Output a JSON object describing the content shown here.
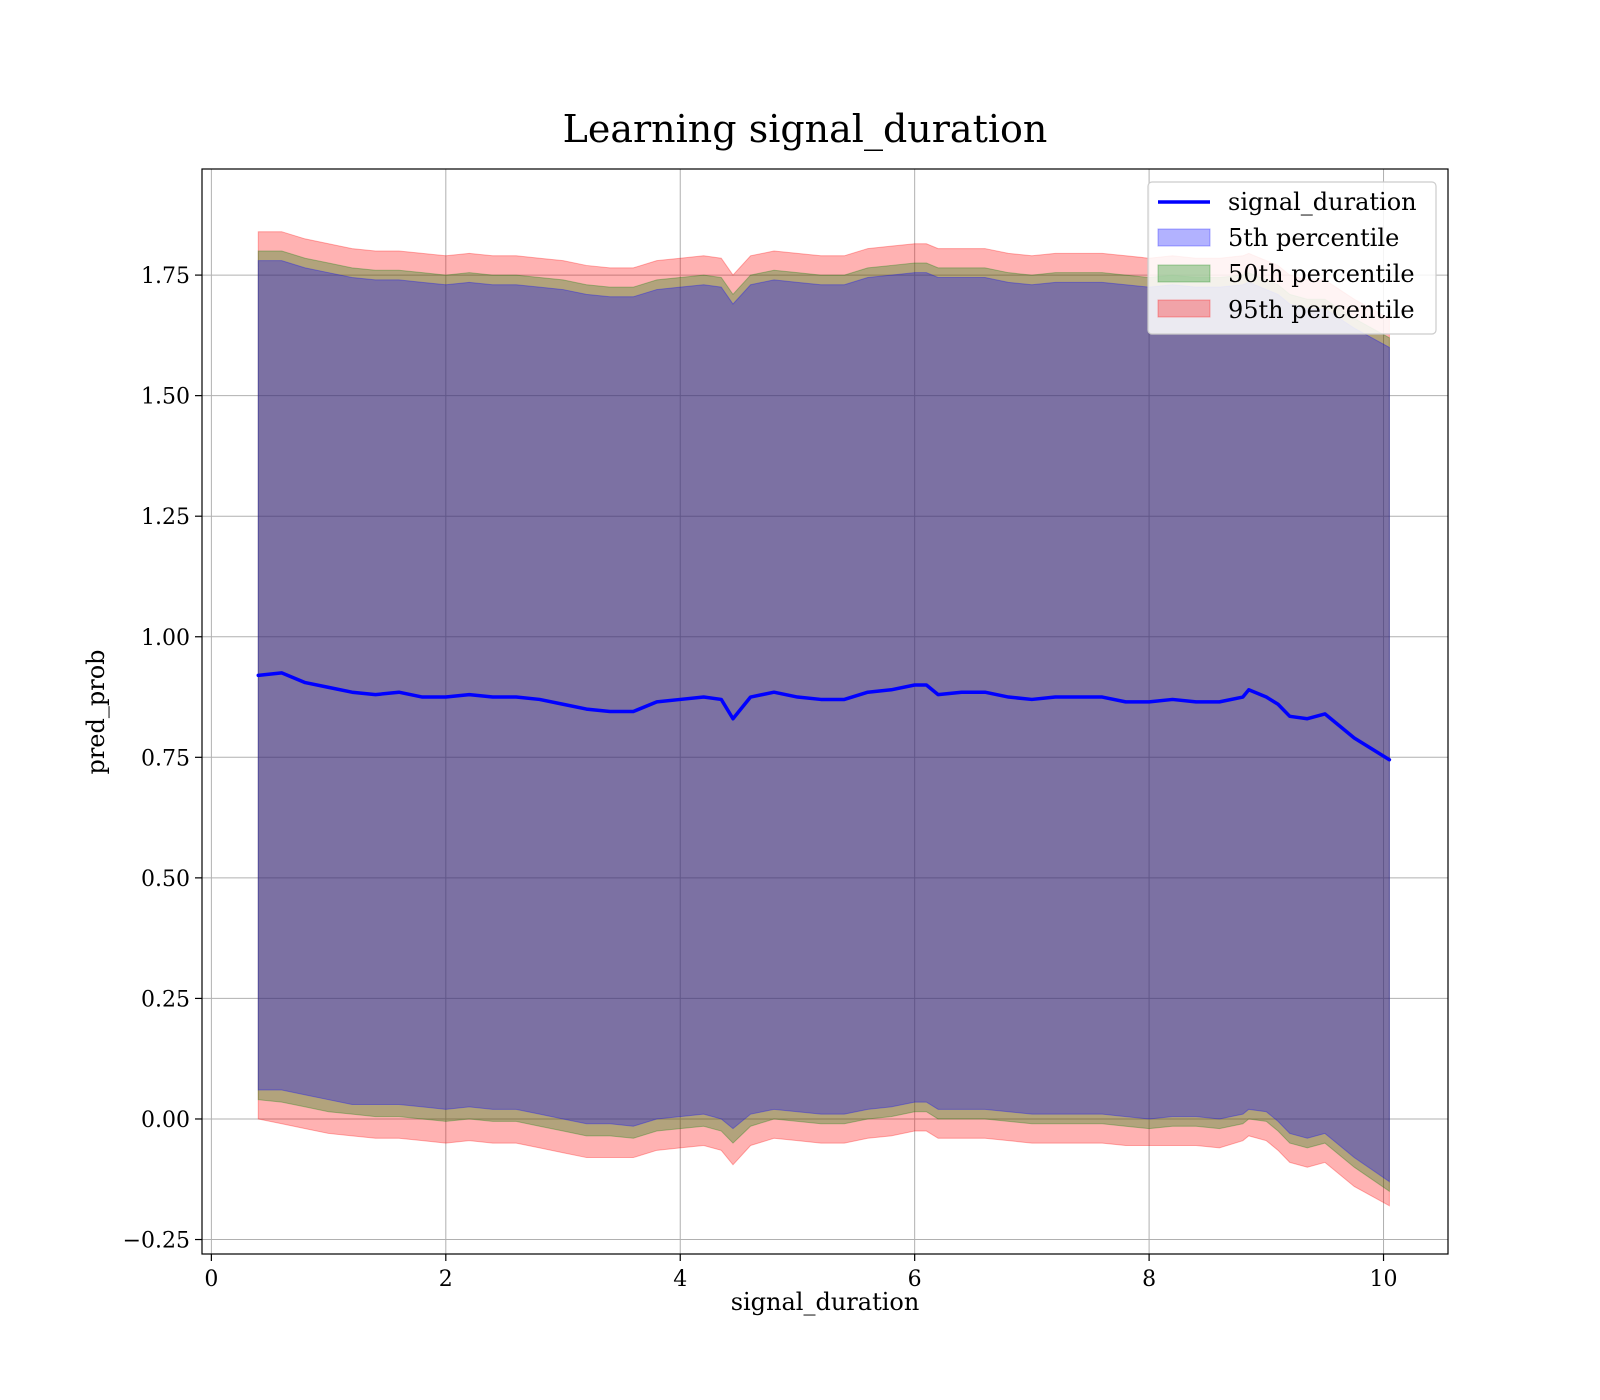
{
  "chart_data": {
    "type": "area",
    "title": "Learning signal_duration",
    "xlabel": "signal_duration",
    "ylabel": "pred_prob",
    "xlim": [
      -0.08,
      10.55
    ],
    "ylim": [
      -0.28,
      1.97
    ],
    "xticks": [
      0,
      2,
      4,
      6,
      8,
      10
    ],
    "yticks": [
      -0.25,
      0.0,
      0.25,
      0.5,
      0.75,
      1.0,
      1.25,
      1.5,
      1.75
    ],
    "ytick_labels": [
      "−0.25",
      "0.00",
      "0.25",
      "0.50",
      "0.75",
      "1.00",
      "1.25",
      "1.50",
      "1.75"
    ],
    "grid": true,
    "legend_position": "top-right",
    "legend": [
      {
        "label": "signal_duration",
        "kind": "line",
        "color": "#0000ff"
      },
      {
        "label": "5th percentile",
        "kind": "patch",
        "color": "#0000ff"
      },
      {
        "label": "50th percentile",
        "kind": "patch",
        "color": "#008000"
      },
      {
        "label": "95th percentile",
        "kind": "patch",
        "color": "#ff0000"
      }
    ],
    "x": [
      0.4,
      0.6,
      0.8,
      1.0,
      1.2,
      1.4,
      1.6,
      1.8,
      2.0,
      2.2,
      2.4,
      2.6,
      2.8,
      3.0,
      3.2,
      3.4,
      3.6,
      3.8,
      4.0,
      4.2,
      4.35,
      4.45,
      4.6,
      4.8,
      5.0,
      5.2,
      5.4,
      5.6,
      5.8,
      6.0,
      6.1,
      6.2,
      6.4,
      6.6,
      6.8,
      7.0,
      7.2,
      7.4,
      7.6,
      7.8,
      8.0,
      8.2,
      8.4,
      8.6,
      8.8,
      8.85,
      9.0,
      9.1,
      9.2,
      9.35,
      9.5,
      9.75,
      10.05
    ],
    "series": [
      {
        "name": "signal_duration",
        "values": [
          0.92,
          0.925,
          0.905,
          0.895,
          0.885,
          0.88,
          0.885,
          0.875,
          0.875,
          0.88,
          0.875,
          0.875,
          0.87,
          0.86,
          0.85,
          0.845,
          0.845,
          0.865,
          0.87,
          0.875,
          0.87,
          0.83,
          0.875,
          0.885,
          0.875,
          0.87,
          0.87,
          0.885,
          0.89,
          0.9,
          0.9,
          0.88,
          0.885,
          0.885,
          0.875,
          0.87,
          0.875,
          0.875,
          0.875,
          0.865,
          0.865,
          0.87,
          0.865,
          0.865,
          0.875,
          0.89,
          0.875,
          0.86,
          0.835,
          0.83,
          0.84,
          0.79,
          0.745
        ]
      },
      {
        "name": "5th percentile",
        "lower": [
          0.06,
          0.06,
          0.05,
          0.04,
          0.03,
          0.03,
          0.03,
          0.025,
          0.02,
          0.025,
          0.02,
          0.02,
          0.01,
          0.0,
          -0.01,
          -0.01,
          -0.015,
          0.0,
          0.005,
          0.01,
          0.0,
          -0.02,
          0.01,
          0.02,
          0.015,
          0.01,
          0.01,
          0.02,
          0.025,
          0.035,
          0.035,
          0.02,
          0.02,
          0.02,
          0.015,
          0.01,
          0.01,
          0.01,
          0.01,
          0.005,
          0.0,
          0.005,
          0.005,
          0.0,
          0.01,
          0.02,
          0.015,
          -0.005,
          -0.03,
          -0.04,
          -0.03,
          -0.08,
          -0.13
        ],
        "upper": [
          1.78,
          1.78,
          1.765,
          1.755,
          1.745,
          1.74,
          1.74,
          1.735,
          1.73,
          1.735,
          1.73,
          1.73,
          1.725,
          1.72,
          1.71,
          1.705,
          1.705,
          1.72,
          1.725,
          1.73,
          1.725,
          1.69,
          1.73,
          1.74,
          1.735,
          1.73,
          1.73,
          1.745,
          1.75,
          1.755,
          1.755,
          1.745,
          1.745,
          1.745,
          1.735,
          1.73,
          1.735,
          1.735,
          1.735,
          1.73,
          1.725,
          1.73,
          1.725,
          1.725,
          1.73,
          1.735,
          1.72,
          1.71,
          1.69,
          1.68,
          1.68,
          1.64,
          1.6
        ]
      },
      {
        "name": "50th percentile",
        "lower": [
          0.04,
          0.035,
          0.025,
          0.015,
          0.01,
          0.005,
          0.005,
          0.0,
          -0.005,
          0.0,
          -0.005,
          -0.005,
          -0.015,
          -0.025,
          -0.035,
          -0.035,
          -0.04,
          -0.025,
          -0.02,
          -0.015,
          -0.025,
          -0.05,
          -0.015,
          0.0,
          -0.005,
          -0.01,
          -0.01,
          0.0,
          0.005,
          0.015,
          0.015,
          0.0,
          0.0,
          0.0,
          -0.005,
          -0.01,
          -0.01,
          -0.01,
          -0.01,
          -0.015,
          -0.02,
          -0.015,
          -0.015,
          -0.02,
          -0.01,
          0.0,
          -0.005,
          -0.025,
          -0.05,
          -0.06,
          -0.05,
          -0.1,
          -0.15
        ],
        "upper": [
          1.8,
          1.8,
          1.785,
          1.775,
          1.765,
          1.76,
          1.76,
          1.755,
          1.75,
          1.755,
          1.75,
          1.75,
          1.745,
          1.74,
          1.73,
          1.725,
          1.725,
          1.74,
          1.745,
          1.75,
          1.745,
          1.71,
          1.75,
          1.76,
          1.755,
          1.75,
          1.75,
          1.765,
          1.77,
          1.775,
          1.775,
          1.765,
          1.765,
          1.765,
          1.755,
          1.75,
          1.755,
          1.755,
          1.755,
          1.75,
          1.745,
          1.75,
          1.745,
          1.745,
          1.75,
          1.755,
          1.74,
          1.73,
          1.71,
          1.7,
          1.7,
          1.66,
          1.62
        ]
      },
      {
        "name": "95th percentile",
        "lower": [
          0.0,
          -0.01,
          -0.02,
          -0.03,
          -0.035,
          -0.04,
          -0.04,
          -0.045,
          -0.05,
          -0.045,
          -0.05,
          -0.05,
          -0.06,
          -0.07,
          -0.08,
          -0.08,
          -0.08,
          -0.065,
          -0.06,
          -0.055,
          -0.065,
          -0.095,
          -0.055,
          -0.04,
          -0.045,
          -0.05,
          -0.05,
          -0.04,
          -0.035,
          -0.025,
          -0.025,
          -0.04,
          -0.04,
          -0.04,
          -0.045,
          -0.05,
          -0.05,
          -0.05,
          -0.05,
          -0.055,
          -0.055,
          -0.055,
          -0.055,
          -0.06,
          -0.045,
          -0.035,
          -0.045,
          -0.065,
          -0.09,
          -0.1,
          -0.09,
          -0.14,
          -0.18
        ],
        "upper": [
          1.84,
          1.84,
          1.825,
          1.815,
          1.805,
          1.8,
          1.8,
          1.795,
          1.79,
          1.795,
          1.79,
          1.79,
          1.785,
          1.78,
          1.77,
          1.765,
          1.765,
          1.78,
          1.785,
          1.79,
          1.785,
          1.75,
          1.79,
          1.8,
          1.795,
          1.79,
          1.79,
          1.805,
          1.81,
          1.815,
          1.815,
          1.805,
          1.805,
          1.805,
          1.795,
          1.79,
          1.795,
          1.795,
          1.795,
          1.79,
          1.785,
          1.79,
          1.785,
          1.785,
          1.79,
          1.795,
          1.78,
          1.77,
          1.75,
          1.74,
          1.74,
          1.7,
          1.66
        ]
      }
    ]
  }
}
